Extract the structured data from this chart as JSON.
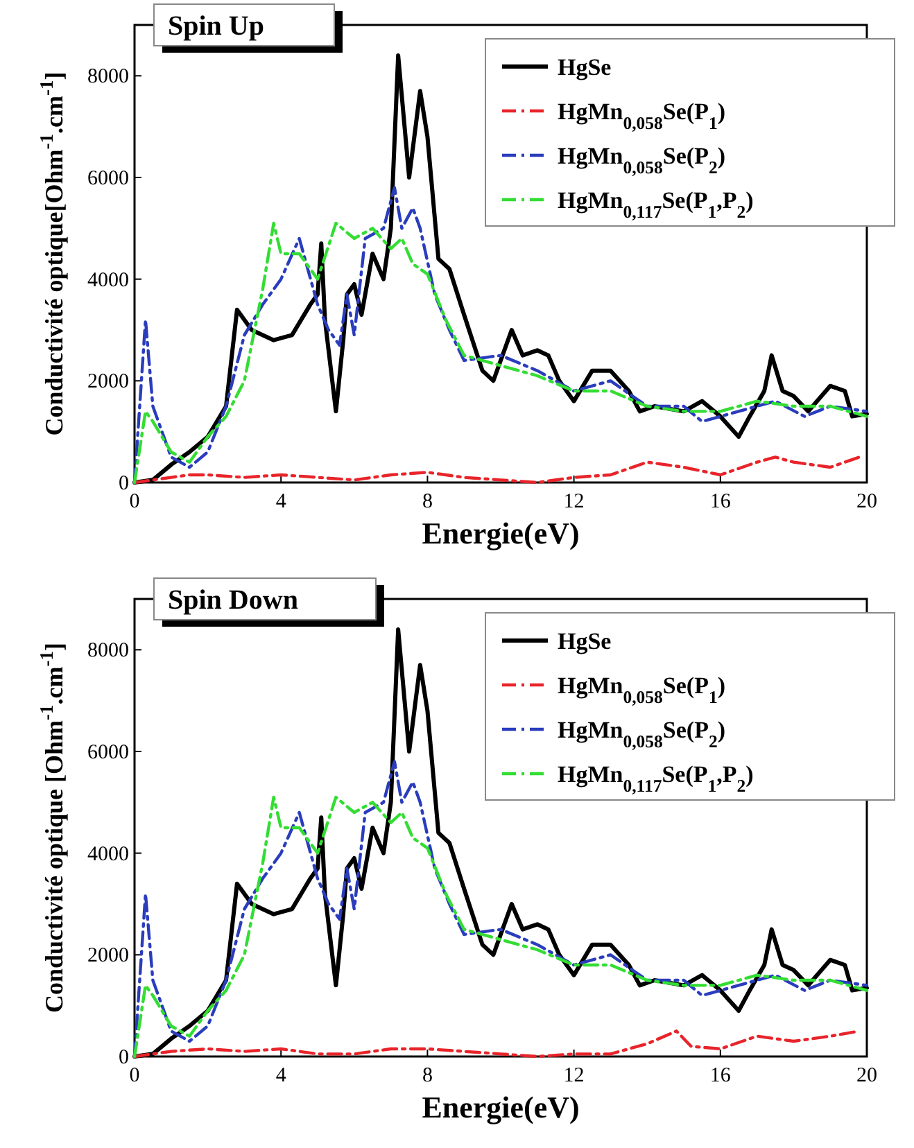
{
  "chart_data": [
    {
      "type": "line",
      "title": "Spin Up",
      "xlabel": "Energie(eV)",
      "ylabel": "Conductivité optique[Ohm$^{-1}$.cm$^{-1}$]",
      "xlim": [
        0,
        20
      ],
      "ylim": [
        0,
        9000
      ],
      "xticks": [
        0,
        4,
        8,
        12,
        16,
        20
      ],
      "yticks": [
        0,
        2000,
        4000,
        6000,
        8000
      ],
      "legend": "top right",
      "grid": false,
      "series": [
        {
          "name": "HgSe",
          "color": "#000000",
          "line_style": "solid",
          "x": [
            0,
            0.5,
            1,
            1.5,
            2,
            2.5,
            2.8,
            3.2,
            3.8,
            4.3,
            4.8,
            5.0,
            5.1,
            5.2,
            5.5,
            5.7,
            5.8,
            6.0,
            6.2,
            6.5,
            6.8,
            7.0,
            7.2,
            7.5,
            7.8,
            8.0,
            8.3,
            8.6,
            9.0,
            9.5,
            9.8,
            10.3,
            10.6,
            11.0,
            11.3,
            11.6,
            12.0,
            12.5,
            13.0,
            13.5,
            13.8,
            14.2,
            15.0,
            15.5,
            16.0,
            16.5,
            16.8,
            17.2,
            17.4,
            17.7,
            18.0,
            18.4,
            19.0,
            19.4,
            19.6,
            20
          ],
          "values": [
            0,
            50,
            350,
            600,
            900,
            1500,
            3400,
            3000,
            2800,
            2900,
            3500,
            3700,
            4700,
            3200,
            1400,
            2800,
            3700,
            3900,
            3300,
            4500,
            4000,
            5000,
            8400,
            6000,
            7700,
            6800,
            4400,
            4200,
            3300,
            2200,
            2000,
            3000,
            2500,
            2600,
            2500,
            2000,
            1600,
            2200,
            2200,
            1800,
            1400,
            1500,
            1400,
            1600,
            1300,
            900,
            1300,
            1800,
            2500,
            1800,
            1700,
            1400,
            1900,
            1800,
            1300,
            1350
          ]
        },
        {
          "name": "HgMn$_{0,058}$Se(P$_{1}$)",
          "color": "#e8242a",
          "line_style": "dashed",
          "x": [
            0,
            1,
            1.5,
            2,
            3,
            4,
            5,
            6,
            7,
            8,
            9,
            10,
            11,
            12,
            13,
            14,
            15,
            16,
            17,
            17.5,
            18,
            19,
            19.8
          ],
          "values": [
            0,
            100,
            150,
            150,
            100,
            150,
            100,
            50,
            150,
            200,
            100,
            50,
            0,
            100,
            150,
            400,
            300,
            150,
            400,
            500,
            400,
            300,
            500
          ]
        },
        {
          "name": "HgMn$_{0,058}$Se(P$_{2}$)",
          "color": "#2a3dbd",
          "line_style": "dashed",
          "x": [
            0,
            0.3,
            0.5,
            1,
            1.5,
            2,
            2.5,
            3,
            3.5,
            4,
            4.5,
            5,
            5.3,
            5.6,
            5.8,
            6,
            6.3,
            6.8,
            7.1,
            7.3,
            7.6,
            7.8,
            8.2,
            8.6,
            9,
            10,
            11,
            12,
            13,
            14,
            15,
            15.5,
            16,
            17,
            17.5,
            18.3,
            19,
            20
          ],
          "values": [
            0,
            3200,
            1500,
            500,
            300,
            600,
            1500,
            2900,
            3500,
            4000,
            4800,
            3500,
            3000,
            2700,
            3700,
            2900,
            4800,
            5000,
            5800,
            5000,
            5400,
            5000,
            3700,
            3000,
            2400,
            2500,
            2200,
            1800,
            2000,
            1500,
            1500,
            1200,
            1300,
            1500,
            1600,
            1300,
            1500,
            1400
          ]
        },
        {
          "name": "HgMn$_{0,117}$Se(P$_{1}$,P$_{2}$)",
          "color": "#33dd33",
          "line_style": "dashed",
          "x": [
            0,
            0.3,
            0.5,
            1,
            1.5,
            2,
            2.5,
            3,
            3.5,
            3.8,
            4,
            4.5,
            5,
            5.5,
            6,
            6.5,
            7,
            7.3,
            7.6,
            8,
            8.5,
            9,
            10,
            11,
            12,
            13,
            14,
            15,
            16,
            17,
            18,
            19,
            20
          ],
          "values": [
            0,
            1400,
            1200,
            600,
            400,
            900,
            1300,
            2000,
            3800,
            5100,
            4500,
            4500,
            4000,
            5100,
            4800,
            5000,
            4600,
            4800,
            4300,
            4100,
            3200,
            2500,
            2300,
            2100,
            1800,
            1800,
            1500,
            1400,
            1400,
            1600,
            1500,
            1500,
            1300
          ]
        }
      ]
    },
    {
      "type": "line",
      "title": "Spin Down",
      "xlabel": "Energie(eV)",
      "ylabel": "Conductivité optique [Ohm$^{-1}$.cm$^{-1}$]",
      "xlim": [
        0,
        20
      ],
      "ylim": [
        0,
        9000
      ],
      "xticks": [
        0,
        4,
        8,
        12,
        16,
        20
      ],
      "yticks": [
        0,
        2000,
        4000,
        6000,
        8000
      ],
      "legend": "top right",
      "grid": false,
      "series": [
        {
          "name": "HgSe",
          "color": "#000000",
          "line_style": "solid",
          "x": [
            0,
            0.5,
            1,
            1.5,
            2,
            2.5,
            2.8,
            3.2,
            3.8,
            4.3,
            4.8,
            5.0,
            5.1,
            5.2,
            5.5,
            5.7,
            5.8,
            6.0,
            6.2,
            6.5,
            6.8,
            7.0,
            7.2,
            7.5,
            7.8,
            8.0,
            8.3,
            8.6,
            9.0,
            9.5,
            9.8,
            10.3,
            10.6,
            11.0,
            11.3,
            11.6,
            12.0,
            12.5,
            13.0,
            13.5,
            13.8,
            14.2,
            15.0,
            15.5,
            16.0,
            16.5,
            16.8,
            17.2,
            17.4,
            17.7,
            18.0,
            18.4,
            19.0,
            19.4,
            19.6,
            20
          ],
          "values": [
            0,
            50,
            350,
            600,
            900,
            1500,
            3400,
            3000,
            2800,
            2900,
            3500,
            3700,
            4700,
            3200,
            1400,
            2800,
            3700,
            3900,
            3300,
            4500,
            4000,
            5000,
            8400,
            6000,
            7700,
            6800,
            4400,
            4200,
            3300,
            2200,
            2000,
            3000,
            2500,
            2600,
            2500,
            2000,
            1600,
            2200,
            2200,
            1800,
            1400,
            1500,
            1400,
            1600,
            1300,
            900,
            1300,
            1800,
            2500,
            1800,
            1700,
            1400,
            1900,
            1800,
            1300,
            1350
          ]
        },
        {
          "name": "HgMn$_{0,058}$Se(P$_{1}$)",
          "color": "#e8242a",
          "line_style": "dashed",
          "x": [
            0,
            1,
            2,
            3,
            4,
            5,
            6,
            7,
            8,
            9,
            10,
            11,
            12,
            13,
            14,
            14.8,
            15.2,
            16,
            17,
            18,
            19,
            19.8
          ],
          "values": [
            0,
            100,
            150,
            100,
            150,
            50,
            50,
            150,
            150,
            100,
            50,
            0,
            50,
            50,
            250,
            500,
            200,
            150,
            400,
            300,
            400,
            500
          ]
        },
        {
          "name": "HgMn$_{0,058}$Se(P$_{2}$)",
          "color": "#2a3dbd",
          "line_style": "dashed",
          "x": [
            0,
            0.3,
            0.5,
            1,
            1.5,
            2,
            2.5,
            3,
            3.5,
            4,
            4.5,
            5,
            5.3,
            5.6,
            5.8,
            6,
            6.3,
            6.8,
            7.1,
            7.3,
            7.6,
            7.8,
            8.2,
            8.6,
            9,
            10,
            11,
            12,
            13,
            14,
            15,
            15.5,
            16,
            17,
            17.5,
            18.3,
            19,
            20
          ],
          "values": [
            0,
            3200,
            1500,
            500,
            300,
            600,
            1500,
            2900,
            3500,
            4000,
            4800,
            3500,
            3000,
            2700,
            3700,
            2900,
            4800,
            5000,
            5800,
            5000,
            5400,
            5000,
            3700,
            3000,
            2400,
            2500,
            2200,
            1800,
            2000,
            1500,
            1500,
            1200,
            1300,
            1500,
            1600,
            1300,
            1500,
            1400
          ]
        },
        {
          "name": "HgMn$_{0,117}$Se(P$_{1}$,P$_{2}$)",
          "color": "#33dd33",
          "line_style": "dashed",
          "x": [
            0,
            0.3,
            0.5,
            1,
            1.5,
            2,
            2.5,
            3,
            3.5,
            3.8,
            4,
            4.5,
            5,
            5.5,
            6,
            6.5,
            7,
            7.3,
            7.6,
            8,
            8.5,
            9,
            10,
            11,
            12,
            13,
            14,
            15,
            16,
            17,
            18,
            19,
            20
          ],
          "values": [
            0,
            1400,
            1200,
            600,
            400,
            900,
            1300,
            2000,
            3800,
            5100,
            4500,
            4500,
            4000,
            5100,
            4800,
            5000,
            4600,
            4800,
            4300,
            4100,
            3200,
            2500,
            2300,
            2100,
            1800,
            1800,
            1500,
            1400,
            1400,
            1600,
            1500,
            1500,
            1300
          ]
        }
      ]
    }
  ]
}
